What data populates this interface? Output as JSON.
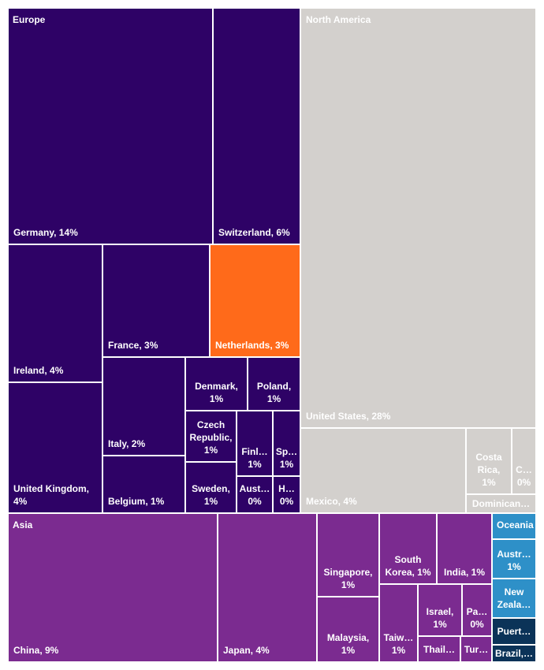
{
  "chart_data": {
    "type": "treemap",
    "unit": "%",
    "colors": {
      "Europe": "#2e0266",
      "Netherlands": "#ff6a1a",
      "North America": "#d3d0cd",
      "Asia": "#7b2b90",
      "Oceania": "#2e90c8",
      "Other": "#0b3358"
    },
    "groups": [
      {
        "name": "Europe",
        "label": "Europe",
        "items": [
          {
            "name": "Germany",
            "label": "Germany, 14%",
            "value": 14
          },
          {
            "name": "Switzerland",
            "label": "Switzerland, 6%",
            "value": 6
          },
          {
            "name": "Ireland",
            "label": "Ireland, 4%",
            "value": 4
          },
          {
            "name": "United Kingdom",
            "label": "United Kingdom,\n4%",
            "value": 4
          },
          {
            "name": "France",
            "label": "France, 3%",
            "value": 3
          },
          {
            "name": "Netherlands",
            "label": "Netherlands, 3%",
            "value": 3
          },
          {
            "name": "Italy",
            "label": "Italy, 2%",
            "value": 2
          },
          {
            "name": "Belgium",
            "label": "Belgium, 1%",
            "value": 1
          },
          {
            "name": "Denmark",
            "label": "Denmark,\n1%",
            "value": 1
          },
          {
            "name": "Poland",
            "label": "Poland,\n1%",
            "value": 1
          },
          {
            "name": "Czech Republic",
            "label": "Czech\nRepublic,\n1%",
            "value": 1
          },
          {
            "name": "Sweden",
            "label": "Sweden,\n1%",
            "value": 1
          },
          {
            "name": "Finland",
            "label": "Finl…\n1%",
            "value": 1
          },
          {
            "name": "Spain",
            "label": "Sp…\n1%",
            "value": 1
          },
          {
            "name": "Austria",
            "label": "Aust…\n0%",
            "value": 0
          },
          {
            "name": "Hungary",
            "label": "H…\n0%",
            "value": 0
          }
        ]
      },
      {
        "name": "North America",
        "label": "North America",
        "items": [
          {
            "name": "United States",
            "label": "United States, 28%",
            "value": 28
          },
          {
            "name": "Mexico",
            "label": "Mexico, 4%",
            "value": 4
          },
          {
            "name": "Costa Rica",
            "label": "Costa\nRica,\n1%",
            "value": 1
          },
          {
            "name": "Canada",
            "label": "C…\n0%",
            "value": 0
          },
          {
            "name": "Dominican Republic",
            "label": "Dominican…",
            "value": 0
          }
        ]
      },
      {
        "name": "Asia",
        "label": "Asia",
        "items": [
          {
            "name": "China",
            "label": "China, 9%",
            "value": 9
          },
          {
            "name": "Japan",
            "label": "Japan, 4%",
            "value": 4
          },
          {
            "name": "Singapore",
            "label": "Singapore,\n1%",
            "value": 1
          },
          {
            "name": "Malaysia",
            "label": "Malaysia,\n1%",
            "value": 1
          },
          {
            "name": "South Korea",
            "label": "South\nKorea, 1%",
            "value": 1
          },
          {
            "name": "India",
            "label": "India, 1%",
            "value": 1
          },
          {
            "name": "Taiwan",
            "label": "Taiw…\n1%",
            "value": 1
          },
          {
            "name": "Israel",
            "label": "Israel,\n1%",
            "value": 1
          },
          {
            "name": "Pakistan",
            "label": "Pa…\n0%",
            "value": 0
          },
          {
            "name": "Thailand",
            "label": "Thail…",
            "value": 0
          },
          {
            "name": "Turkey",
            "label": "Tur…",
            "value": 0
          }
        ]
      },
      {
        "name": "Oceania",
        "label": "Oceania",
        "items": [
          {
            "name": "Australia",
            "label": "Austr…\n1%",
            "value": 1
          },
          {
            "name": "New Zealand",
            "label": "New\nZeala…",
            "value": 0
          }
        ]
      },
      {
        "name": "Other",
        "label": "",
        "items": [
          {
            "name": "Puerto Rico",
            "label": "Puert…",
            "value": 0
          },
          {
            "name": "Brazil",
            "label": "Brazil,…",
            "value": 0
          }
        ]
      }
    ]
  }
}
